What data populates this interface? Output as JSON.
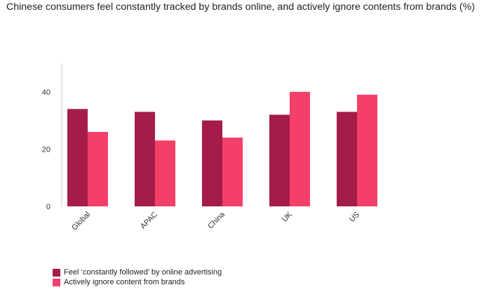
{
  "chart_data": {
    "type": "bar",
    "title": "Chinese consumers feel constantly tracked by brands online, and actively ignore contents from brands (%)",
    "categories": [
      "Global",
      "APAC",
      "China",
      "UK",
      "US"
    ],
    "series": [
      {
        "name": "Feel ‘constantly followed’ by online advertising",
        "color": "#a51c48",
        "values": [
          34,
          33,
          30,
          32,
          33
        ]
      },
      {
        "name": "Actively ignore content from brands",
        "color": "#f44069",
        "values": [
          26,
          23,
          24,
          40,
          39
        ]
      }
    ],
    "yticks": [
      "0",
      "20",
      "40"
    ],
    "ylim": [
      0,
      50
    ],
    "xlabel": "",
    "ylabel": "",
    "grid": false,
    "legend_position": "bottom-left"
  }
}
